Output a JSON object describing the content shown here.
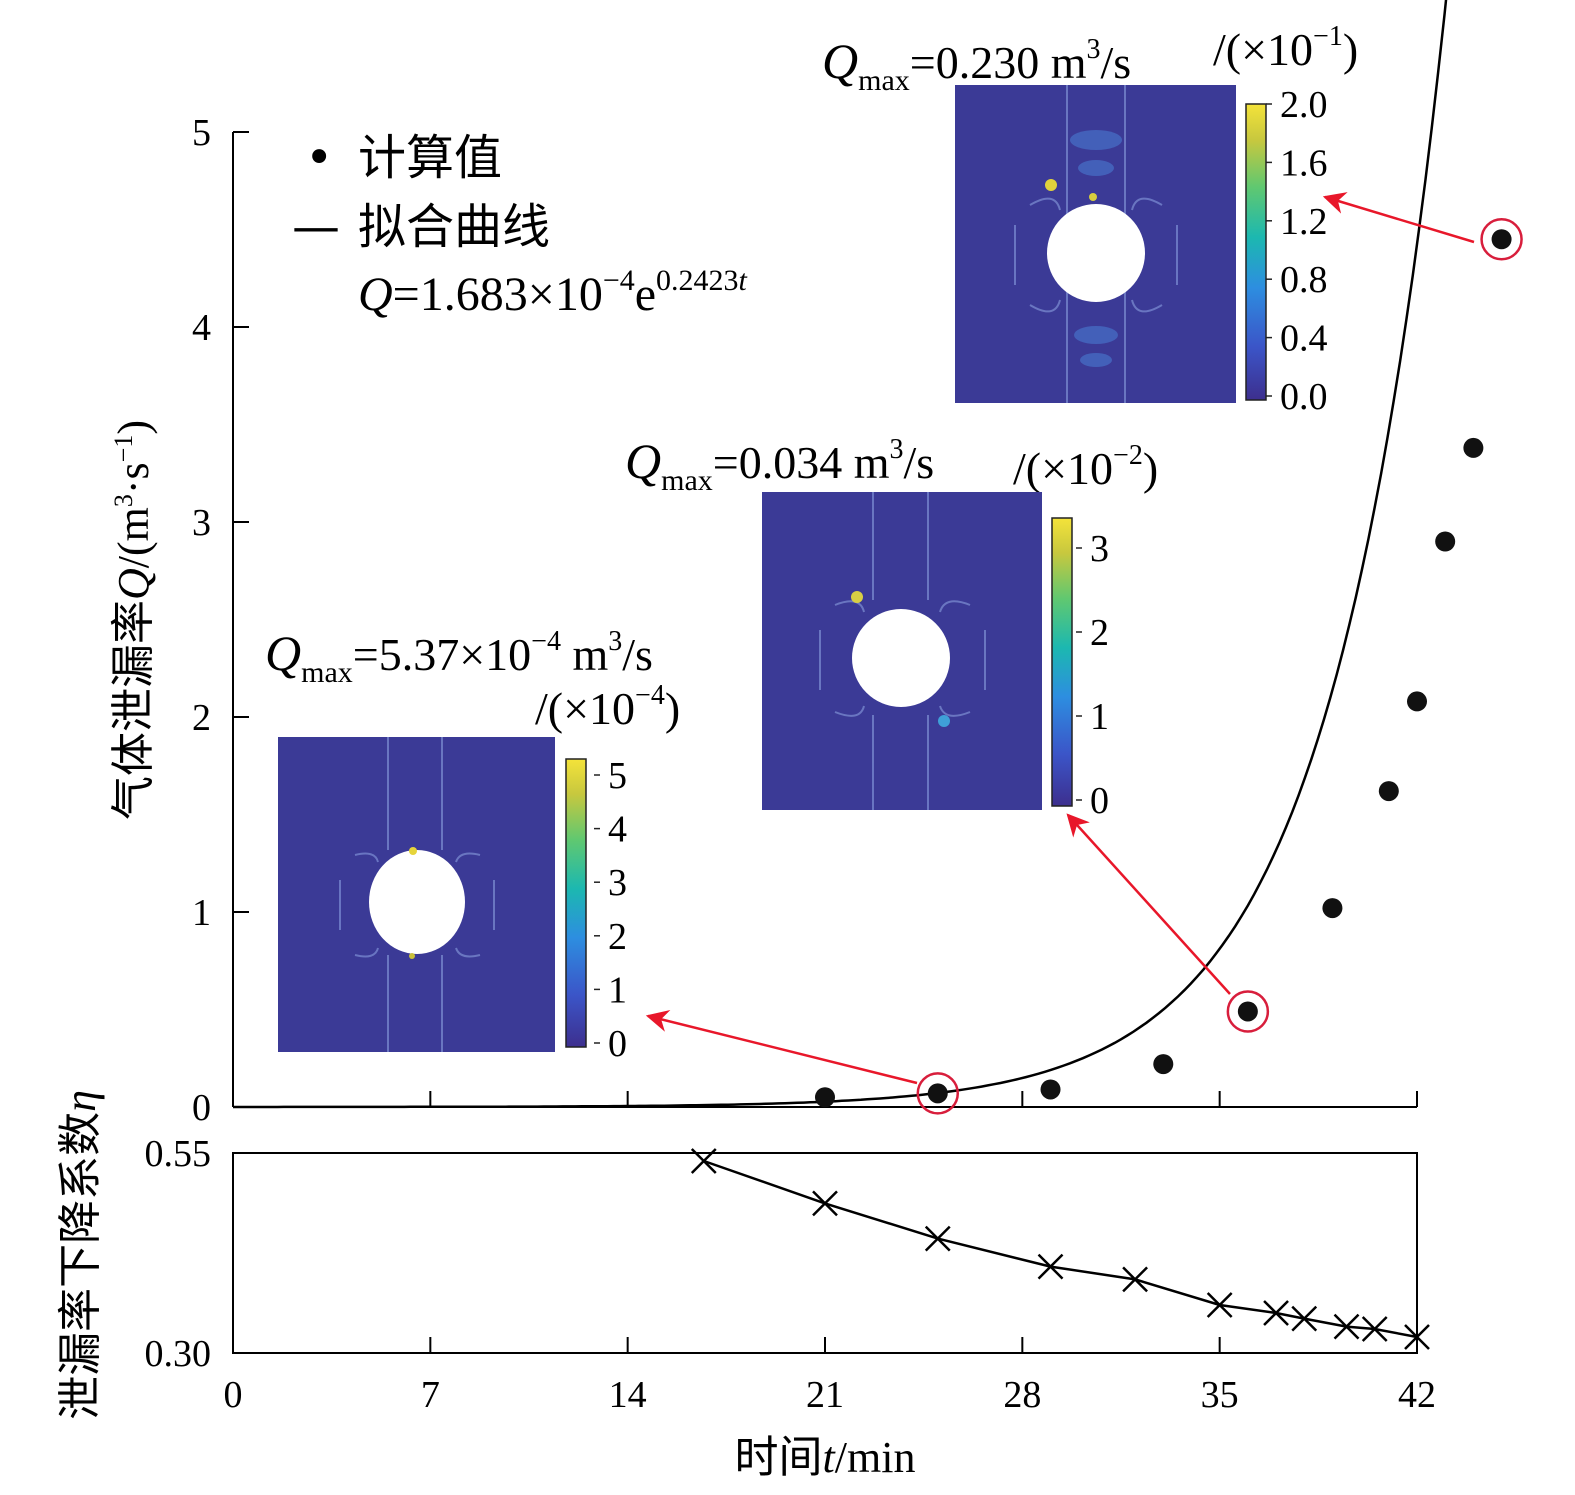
{
  "colors": {
    "field_background": "#3b3a96",
    "arrow": "#e8172a",
    "highlight_circle": "#d81e3c",
    "colorbar_top": "#f4e33a",
    "colorbar_bottom": "#3d2f8e"
  },
  "legend": {
    "marker": "•",
    "points_label": "计算值",
    "line_symbol": "—",
    "fit_label": "拟合曲线",
    "formula": {
      "q": "Q",
      "body": "=1.683×10",
      "exp": "−4",
      "e": "e",
      "e_exp": "0.2423",
      "t": "t"
    }
  },
  "insets": [
    {
      "qmax_sym": "Q",
      "qmax_sub": "max",
      "qmax_value": "=5.37×10",
      "qmax_value_exp": "−4",
      "qmax_unit": " m",
      "qmax_unit_exp": "3",
      "qmax_unit_tail": "/s",
      "scale_prefix": "/(×10",
      "scale_exp": "−4",
      "scale_suffix": ")",
      "colorbar_ticks": [
        "5",
        "4",
        "3",
        "2",
        "1",
        "0"
      ]
    },
    {
      "qmax_sym": "Q",
      "qmax_sub": "max",
      "qmax_value": "=0.034 m",
      "qmax_value_exp": "3",
      "qmax_unit": "/s",
      "scale_prefix": "/(×10",
      "scale_exp": "−2",
      "scale_suffix": ")",
      "colorbar_ticks": [
        "3",
        "2",
        "1",
        "0"
      ]
    },
    {
      "qmax_sym": "Q",
      "qmax_sub": "max",
      "qmax_value": "=0.230 m",
      "qmax_value_exp": "3",
      "qmax_unit": "/s",
      "scale_prefix": "/(×10",
      "scale_exp": "−1",
      "scale_suffix": ")",
      "colorbar_ticks": [
        "2.0",
        "1.6",
        "1.2",
        "0.8",
        "0.4",
        "0.0"
      ]
    }
  ],
  "chart_data": [
    {
      "type": "scatter",
      "ylabel": "气体泄漏率Q/(m³·s⁻¹)",
      "ylabel_parts": {
        "text": "气体泄漏率",
        "q": "Q",
        "unit": "/(m",
        "exp1": "3",
        "mid": "·s",
        "exp2": "−1",
        "end": ")"
      },
      "xlim": [
        0,
        42
      ],
      "ylim": [
        0,
        5
      ],
      "yticks": [
        "0",
        "1",
        "2",
        "3",
        "4",
        "5"
      ],
      "xticks": [
        0,
        7,
        14,
        21,
        28,
        35,
        42
      ],
      "series": [
        {
          "name": "计算值",
          "x": [
            21,
            25,
            29,
            33,
            36,
            39,
            41,
            42,
            43,
            44,
            45
          ],
          "y": [
            0.05,
            0.07,
            0.09,
            0.22,
            0.49,
            1.02,
            1.62,
            2.08,
            2.9,
            3.38,
            4.45
          ]
        },
        {
          "name": "拟合曲线",
          "fit": {
            "a": 0.0001683,
            "b": 0.2423,
            "x_range": [
              0,
              45
            ]
          }
        }
      ],
      "highlighted_x": [
        25,
        36,
        45
      ]
    },
    {
      "type": "line",
      "xlabel": "时间t/min",
      "xlabel_parts": {
        "text": "时间",
        "t": "t",
        "unit": "/min"
      },
      "ylabel": "泄漏率下降系数η",
      "ylabel_parts": {
        "text": "泄漏率下降系数",
        "eta": "η"
      },
      "xlim": [
        0,
        42
      ],
      "ylim": [
        0.3,
        0.55
      ],
      "xticks": [
        "0",
        "7",
        "14",
        "21",
        "28",
        "35",
        "42"
      ],
      "yticks": [
        "0.30",
        "0.55"
      ],
      "series": [
        {
          "name": "",
          "marker": "x",
          "x": [
            16.7,
            21,
            25,
            29,
            32,
            35,
            37,
            38,
            39.5,
            40.5,
            42
          ],
          "y": [
            0.54,
            0.487,
            0.443,
            0.408,
            0.392,
            0.36,
            0.35,
            0.343,
            0.333,
            0.33,
            0.32
          ]
        }
      ]
    }
  ]
}
